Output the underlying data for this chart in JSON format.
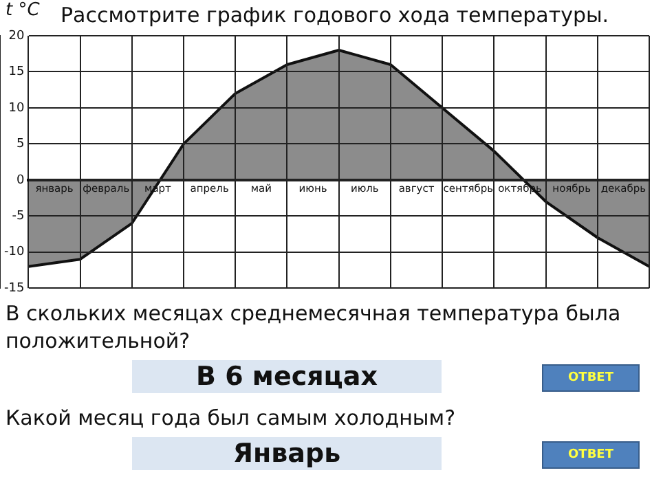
{
  "chart_data": {
    "type": "area",
    "title": "Рассмотрите график годового хода температуры.",
    "ylabel": "t °C",
    "categories": [
      null,
      "январь",
      null,
      "февраль",
      null,
      "март",
      null,
      "апрель",
      null,
      "май",
      null,
      "июнь",
      null,
      "июль",
      null,
      "август",
      null,
      "сентябрь",
      null,
      "октябрь",
      null,
      "ноябрь",
      null,
      "декабрь",
      null
    ],
    "series": [
      {
        "color": "#8c8c8c",
        "values": [
          -12,
          null,
          -11,
          null,
          -6,
          null,
          5,
          null,
          12,
          null,
          16,
          null,
          18,
          null,
          16,
          null,
          10,
          null,
          4,
          null,
          -3,
          null,
          -8,
          null,
          -12
        ]
      }
    ],
    "ylim": [
      -15,
      20
    ],
    "yticks": [
      -15,
      -10,
      -5,
      0,
      5,
      10,
      15,
      20
    ],
    "grid": true,
    "marker": "none",
    "annotations": [
      "В скольких месяцах среднемесячная температура была положительной?",
      "В 6 месяцах",
      "ОТВЕТ",
      "Какой месяц года был самым холодным?",
      "Январь",
      "ОТВЕТ"
    ]
  }
}
